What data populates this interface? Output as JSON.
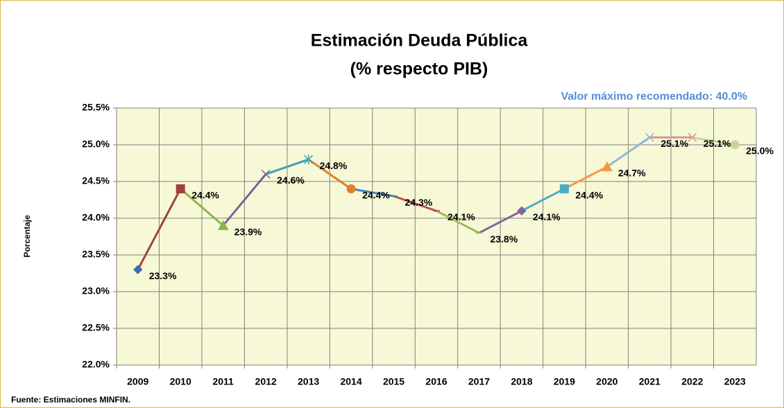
{
  "chart_data": {
    "type": "line",
    "title": "Estimación Deuda Pública",
    "subtitle": "(% respecto PIB)",
    "annotation": "Valor máximo recomendado: 40.0%",
    "y_label": "Porcentaje",
    "source": "Fuente: Estimaciones MINFIN.",
    "categories": [
      "2009",
      "2010",
      "2011",
      "2012",
      "2013",
      "2014",
      "2015",
      "2016",
      "2017",
      "2018",
      "2019",
      "2020",
      "2021",
      "2022",
      "2023"
    ],
    "values": [
      23.3,
      24.4,
      23.9,
      24.6,
      24.8,
      24.4,
      24.3,
      24.1,
      23.8,
      24.1,
      24.4,
      24.7,
      25.1,
      25.1,
      25.0
    ],
    "value_labels": [
      "23.3%",
      "24.4%",
      "23.9%",
      "24.6%",
      "24.8%",
      "24.4%",
      "24.3%",
      "24.1%",
      "23.8%",
      "24.1%",
      "24.4%",
      "24.7%",
      "25.1%",
      "25.1%",
      "25.0%"
    ],
    "colors": [
      "#3d6ea8",
      "#a0413c",
      "#8db354",
      "#7d60a0",
      "#3fa0b8",
      "#d9822b",
      "#4f81bd",
      "#c0504d",
      "#9bbb59",
      "#8064a2",
      "#4bacc6",
      "#f79646",
      "#95b3d7",
      "#d99694",
      "#c3d69b"
    ],
    "markers": [
      "diamond",
      "square",
      "triangle",
      "x",
      "star",
      "circle",
      "dash",
      "dash",
      "dash",
      "diamond",
      "square",
      "triangle",
      "x",
      "x",
      "circle"
    ],
    "ylim": [
      22.0,
      25.5
    ],
    "yticks": [
      {
        "value": 22.0,
        "label": "22.0%"
      },
      {
        "value": 22.5,
        "label": "22.5%"
      },
      {
        "value": 23.0,
        "label": "23.0%"
      },
      {
        "value": 23.5,
        "label": "23.5%"
      },
      {
        "value": 24.0,
        "label": "24.0%"
      },
      {
        "value": 24.5,
        "label": "24.5%"
      },
      {
        "value": 25.0,
        "label": "25.0%"
      },
      {
        "value": 25.5,
        "label": "25.5%"
      }
    ],
    "grid": true
  }
}
